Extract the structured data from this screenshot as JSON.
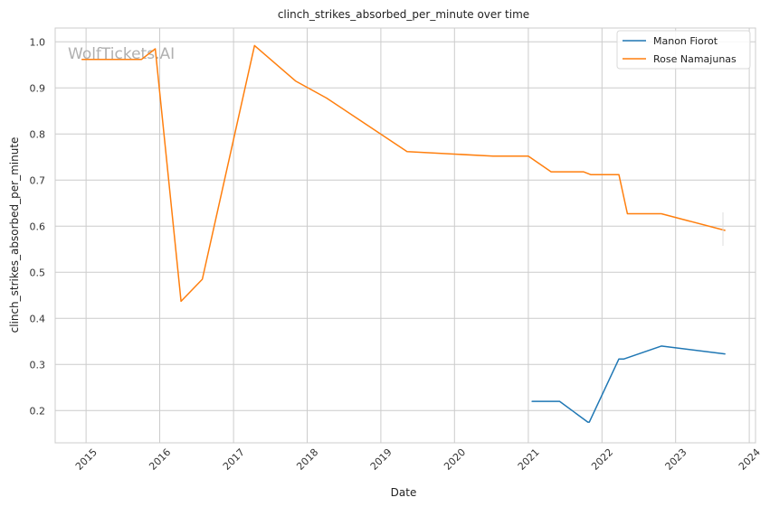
{
  "chart_data": {
    "type": "line",
    "title": "clinch_strikes_absorbed_per_minute over time",
    "xlabel": "Date",
    "ylabel": "clinch_strikes_absorbed_per_minute",
    "watermark": "WolfTickets.AI",
    "xlim": [
      "2014-08-01",
      "2024-02-01"
    ],
    "ylim": [
      0.13,
      1.03
    ],
    "x_ticks": [
      "2015-01-01",
      "2016-01-01",
      "2017-01-01",
      "2018-01-01",
      "2019-01-01",
      "2020-01-01",
      "2021-01-01",
      "2022-01-01",
      "2023-01-01",
      "2024-01-01"
    ],
    "x_tick_labels": [
      "2015",
      "2016",
      "2017",
      "2018",
      "2019",
      "2020",
      "2021",
      "2022",
      "2023",
      "2024"
    ],
    "y_ticks": [
      0.2,
      0.3,
      0.4,
      0.5,
      0.6,
      0.7,
      0.8,
      0.9,
      1.0
    ],
    "y_tick_labels": [
      "0.2",
      "0.3",
      "0.4",
      "0.5",
      "0.6",
      "0.7",
      "0.8",
      "0.9",
      "1.0"
    ],
    "grid": true,
    "legend_position": "top-right",
    "series": [
      {
        "name": "Manon Fiorot",
        "color": "#1f77b4",
        "points": [
          [
            "2021-01-20",
            0.22
          ],
          [
            "2021-06-05",
            0.22
          ],
          [
            "2021-10-23",
            0.175
          ],
          [
            "2021-10-30",
            0.175
          ],
          [
            "2022-03-26",
            0.312
          ],
          [
            "2022-04-20",
            0.312
          ],
          [
            "2022-10-22",
            0.34
          ],
          [
            "2023-09-02",
            0.323
          ]
        ]
      },
      {
        "name": "Rose Namajunas",
        "color": "#ff7f0e",
        "points": [
          [
            "2014-12-12",
            0.962
          ],
          [
            "2015-10-03",
            0.962
          ],
          [
            "2015-12-10",
            0.985
          ],
          [
            "2016-04-16",
            0.437
          ],
          [
            "2016-07-30",
            0.485
          ],
          [
            "2017-04-15",
            0.992
          ],
          [
            "2017-11-04",
            0.915
          ],
          [
            "2018-04-07",
            0.878
          ],
          [
            "2019-05-11",
            0.762
          ],
          [
            "2020-07-11",
            0.752
          ],
          [
            "2021-01-01",
            0.752
          ],
          [
            "2021-04-24",
            0.718
          ],
          [
            "2021-10-01",
            0.718
          ],
          [
            "2021-11-06",
            0.712
          ],
          [
            "2022-03-26",
            0.712
          ],
          [
            "2022-05-07",
            0.627
          ],
          [
            "2022-10-22",
            0.627
          ],
          [
            "2023-09-02",
            0.591
          ]
        ]
      }
    ]
  }
}
